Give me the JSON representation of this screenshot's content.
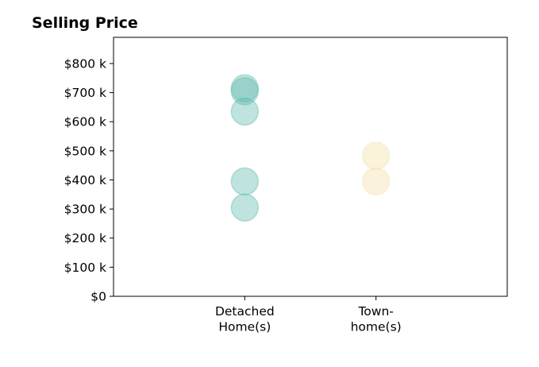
{
  "chart_data": {
    "type": "scatter",
    "title": "Selling Price",
    "categories": [
      "Detached\nHome(s)",
      "Town-\nhome(s)"
    ],
    "y_ticks": [
      0,
      100,
      200,
      300,
      400,
      500,
      600,
      700,
      800
    ],
    "y_tick_labels": [
      "$0",
      "$100 k",
      "$200 k",
      "$300 k",
      "$400 k",
      "$500 k",
      "$600 k",
      "$700 k",
      "$800 k"
    ],
    "ylim": [
      0,
      890
    ],
    "xlim": [
      -1,
      2
    ],
    "grid": false,
    "series": [
      {
        "category_index": 0,
        "color": "#5fb8ad",
        "values": [
          715,
          705,
          635,
          395,
          305
        ]
      },
      {
        "category_index": 1,
        "color": "#f6dfa8",
        "values": [
          483,
          395
        ]
      }
    ]
  }
}
